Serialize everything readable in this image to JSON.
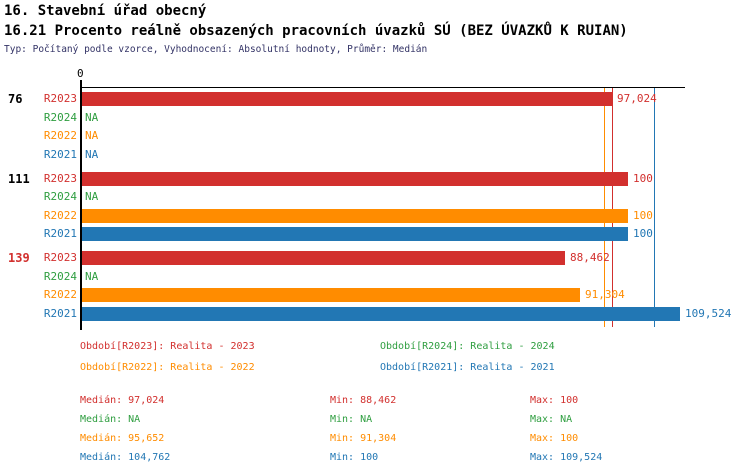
{
  "header": {
    "title1": "16. Stavební úřad obecný",
    "title2": "16.21 Procento reálně obsazených pracovních úvazků SÚ (BEZ ÚVAZKŮ K RUIAN)",
    "subtitle": "Typ: Počítaný podle vzorce, Vyhodnocení: Absolutní hodnoty, Průměr: Medián"
  },
  "colors": {
    "R2023": "#d2302e",
    "R2024": "#2f9e40",
    "R2022": "#ff8c00",
    "R2021": "#2277b4",
    "axis": "#000000",
    "group_label_default": "#000000",
    "subtitle": "#333366"
  },
  "chart_data": {
    "type": "bar",
    "orientation": "horizontal",
    "x_axis": {
      "origin_label": "0",
      "origin_value": 0,
      "max_value": 110.5,
      "gridlines": false
    },
    "series_order": [
      "R2023",
      "R2024",
      "R2022",
      "R2021"
    ],
    "na_text": "NA",
    "groups": [
      {
        "label": "76",
        "label_color": "#000000",
        "bars": [
          {
            "series": "R2023",
            "value": 97.024,
            "display": "97,024"
          },
          {
            "series": "R2024",
            "value": null,
            "display": "NA"
          },
          {
            "series": "R2022",
            "value": null,
            "display": "NA"
          },
          {
            "series": "R2021",
            "value": null,
            "display": "NA"
          }
        ]
      },
      {
        "label": "111",
        "label_color": "#000000",
        "bars": [
          {
            "series": "R2023",
            "value": 100,
            "display": "100"
          },
          {
            "series": "R2024",
            "value": null,
            "display": "NA"
          },
          {
            "series": "R2022",
            "value": 100,
            "display": "100"
          },
          {
            "series": "R2021",
            "value": 100,
            "display": "100"
          }
        ]
      },
      {
        "label": "139",
        "label_color": "#d2302e",
        "bars": [
          {
            "series": "R2023",
            "value": 88.462,
            "display": "88,462"
          },
          {
            "series": "R2024",
            "value": null,
            "display": "NA"
          },
          {
            "series": "R2022",
            "value": 91.304,
            "display": "91,304"
          },
          {
            "series": "R2021",
            "value": 109.524,
            "display": "109,524"
          }
        ]
      }
    ],
    "median_lines": [
      {
        "series": "R2022",
        "value": 95.652
      },
      {
        "series": "R2023",
        "value": 97.024
      },
      {
        "series": "R2021",
        "value": 104.762
      }
    ]
  },
  "legend": {
    "items": [
      {
        "series": "R2023",
        "label": "Období[R2023]: Realita - 2023"
      },
      {
        "series": "R2024",
        "label": "Období[R2024]: Realita - 2024"
      },
      {
        "series": "R2022",
        "label": "Období[R2022]: Realita - 2022"
      },
      {
        "series": "R2021",
        "label": "Období[R2021]: Realita - 2021"
      }
    ]
  },
  "stats": {
    "rows": [
      {
        "series": "R2023",
        "median": "Medián: 97,024",
        "min": "Min: 88,462",
        "max": "Max: 100"
      },
      {
        "series": "R2024",
        "median": "Medián: NA",
        "min": "Min: NA",
        "max": "Max: NA"
      },
      {
        "series": "R2022",
        "median": "Medián: 95,652",
        "min": "Min: 91,304",
        "max": "Max: 100"
      },
      {
        "series": "R2021",
        "median": "Medián: 104,762",
        "min": "Min: 100",
        "max": "Max: 109,524"
      }
    ]
  }
}
